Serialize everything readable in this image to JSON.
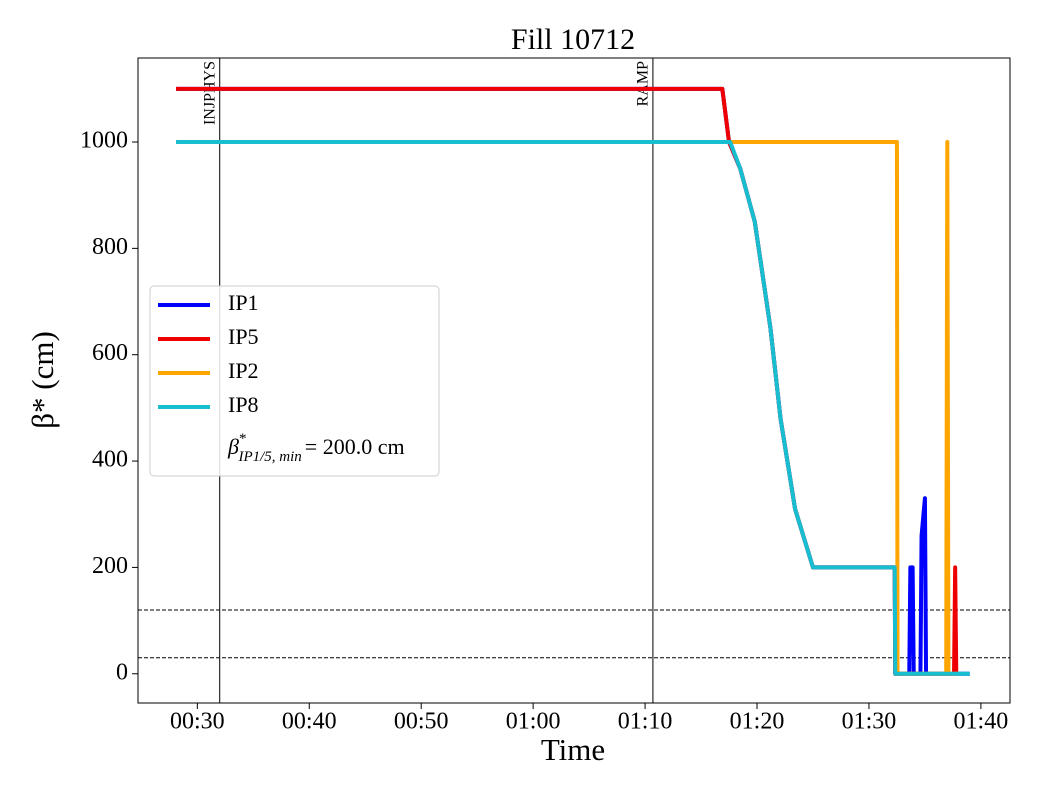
{
  "chart_data": {
    "type": "line",
    "title": "Fill 10712",
    "xlabel": "Time",
    "ylabel": "β* (cm)",
    "xlim": [
      24.7,
      102.6
    ],
    "ylim": [
      -55,
      1158
    ],
    "xticks": [
      {
        "value": 30,
        "label": "00:30"
      },
      {
        "value": 40,
        "label": "00:40"
      },
      {
        "value": 50,
        "label": "00:50"
      },
      {
        "value": 60,
        "label": "01:00"
      },
      {
        "value": 70,
        "label": "01:10"
      },
      {
        "value": 80,
        "label": "01:20"
      },
      {
        "value": 90,
        "label": "01:30"
      },
      {
        "value": 100,
        "label": "01:40"
      }
    ],
    "yticks": [
      0,
      200,
      400,
      600,
      800,
      1000
    ],
    "series": [
      {
        "name": "IP1",
        "color": "#0000ff",
        "x": [
          28.1,
          76.9,
          77.5,
          78.5,
          79.8,
          81.2,
          82.1,
          83.4,
          85.0,
          92.3,
          92.35,
          93.6,
          93.7,
          93.9,
          94.0,
          94.6,
          94.7,
          95.0,
          95.1,
          99.0
        ],
        "values": [
          1100,
          1100,
          1000,
          950,
          850,
          650,
          480,
          310,
          200,
          200,
          0,
          0,
          200,
          200,
          0,
          0,
          260,
          330,
          0,
          0
        ]
      },
      {
        "name": "IP5",
        "color": "#ee0000",
        "x": [
          28.1,
          76.9,
          77.5,
          78.5,
          79.8,
          81.2,
          82.1,
          83.4,
          85.0,
          92.3,
          92.35,
          97.6,
          97.7,
          97.8
        ],
        "values": [
          1100,
          1100,
          1000,
          950,
          850,
          650,
          480,
          310,
          200,
          200,
          0,
          0,
          200,
          0
        ]
      },
      {
        "name": "IP2",
        "color": "#ffa500",
        "x": [
          28.1,
          77.5,
          92.5,
          92.55,
          96.9,
          97.0,
          97.1,
          98.0
        ],
        "values": [
          1000,
          1000,
          1000,
          0,
          0,
          1000,
          0,
          0
        ]
      },
      {
        "name": "IP8",
        "color": "#17becf",
        "x": [
          28.1,
          77.6,
          78.5,
          79.8,
          81.2,
          82.1,
          83.4,
          85.0,
          92.3,
          92.35,
          99.0
        ],
        "values": [
          1000,
          1000,
          950,
          850,
          650,
          480,
          310,
          200,
          200,
          0,
          0
        ]
      }
    ],
    "legend_note": {
      "symbol": "β",
      "sup": "*",
      "sub": "IP1/5, min",
      "rest": "= 200.0 cm"
    },
    "vlines": [
      {
        "x": 32.0,
        "label": "INJPHYS"
      },
      {
        "x": 70.7,
        "label": "RAMP"
      }
    ],
    "hlines": [
      120,
      30
    ],
    "legend": "center left"
  }
}
